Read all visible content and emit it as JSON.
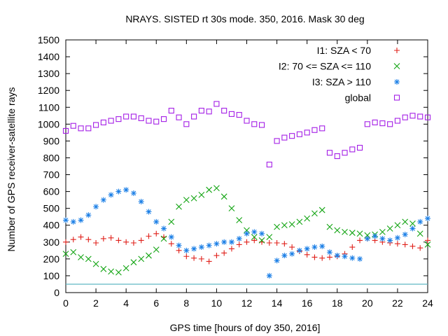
{
  "chart_data": {
    "type": "scatter",
    "title": "NRAYS. SISTED rt 30s mode. 350, 2016. Mask 30 deg",
    "xlabel": "GPS time [hours of doy 350, 2016]",
    "ylabel": "Number of GPS receiver-satellite rays",
    "xlim": [
      0,
      24
    ],
    "ylim": [
      0,
      1500
    ],
    "xticks": [
      0,
      2,
      4,
      6,
      8,
      10,
      12,
      14,
      16,
      18,
      20,
      22,
      24
    ],
    "yticks": [
      0,
      100,
      200,
      300,
      400,
      500,
      600,
      700,
      800,
      900,
      1000,
      1100,
      1200,
      1300,
      1400,
      1500
    ],
    "grid": false,
    "legend_position": "top-right",
    "reference_line": {
      "y": 50,
      "color": "#5fb8c4"
    },
    "series": [
      {
        "name": "I1: SZA < 70",
        "marker": "+",
        "color": "#e0201a",
        "x": [
          0,
          0.5,
          1,
          1.5,
          2,
          2.5,
          3,
          3.5,
          4,
          4.5,
          5,
          5.5,
          6,
          6.5,
          7,
          7.5,
          8,
          8.5,
          9,
          9.5,
          10,
          10.5,
          11,
          11.5,
          12,
          12.5,
          13,
          13.5,
          14,
          14.5,
          15,
          15.5,
          16,
          16.5,
          17,
          17.5,
          18,
          18.5,
          19,
          19.5,
          20,
          20.5,
          21,
          21.5,
          22,
          22.5,
          23,
          23.5,
          24
        ],
        "values": [
          300,
          315,
          330,
          315,
          295,
          320,
          325,
          310,
          300,
          295,
          310,
          335,
          350,
          330,
          290,
          250,
          215,
          205,
          200,
          185,
          220,
          235,
          260,
          285,
          300,
          310,
          300,
          295,
          295,
          290,
          270,
          245,
          225,
          210,
          205,
          210,
          215,
          230,
          270,
          310,
          320,
          310,
          300,
          295,
          290,
          285,
          275,
          265,
          310
        ]
      },
      {
        "name": "I2: 70 <= SZA <= 110",
        "marker": "x",
        "color": "#12a412",
        "x": [
          0,
          0.5,
          1,
          1.5,
          2,
          2.5,
          3,
          3.5,
          4,
          4.5,
          5,
          5.5,
          6,
          6.5,
          7,
          7.5,
          8,
          8.5,
          9,
          9.5,
          10,
          10.5,
          11,
          11.5,
          12,
          12.5,
          13,
          13.5,
          14,
          14.5,
          15,
          15.5,
          16,
          16.5,
          17,
          17.5,
          18,
          18.5,
          19,
          19.5,
          20,
          20.5,
          21,
          21.5,
          22,
          22.5,
          23,
          23.5,
          24
        ],
        "values": [
          230,
          240,
          210,
          200,
          170,
          140,
          125,
          120,
          145,
          180,
          200,
          220,
          255,
          320,
          420,
          510,
          550,
          560,
          580,
          610,
          620,
          570,
          500,
          430,
          370,
          330,
          310,
          330,
          390,
          400,
          405,
          420,
          440,
          470,
          490,
          390,
          370,
          360,
          355,
          350,
          340,
          345,
          360,
          380,
          400,
          420,
          410,
          350,
          285
        ]
      },
      {
        "name": "I3: SZA > 110",
        "marker": "*",
        "color": "#1b7fe6",
        "x": [
          0,
          0.5,
          1,
          1.5,
          2,
          2.5,
          3,
          3.5,
          4,
          4.5,
          5,
          5.5,
          6,
          6.5,
          7,
          7.5,
          8,
          8.5,
          9,
          9.5,
          10,
          10.5,
          11,
          11.5,
          12,
          12.5,
          13,
          13.5,
          14,
          14.5,
          15,
          15.5,
          16,
          16.5,
          17,
          17.5,
          18,
          18.5,
          19,
          19.5,
          20,
          20.5,
          21,
          21.5,
          22,
          22.5,
          23,
          23.5,
          24
        ],
        "values": [
          430,
          420,
          430,
          460,
          510,
          550,
          580,
          600,
          610,
          590,
          540,
          480,
          420,
          380,
          330,
          280,
          250,
          260,
          270,
          280,
          290,
          300,
          300,
          320,
          350,
          360,
          350,
          100,
          190,
          220,
          230,
          250,
          260,
          270,
          275,
          240,
          220,
          215,
          205,
          200,
          320,
          335,
          320,
          310,
          325,
          345,
          380,
          420,
          440
        ]
      },
      {
        "name": "global",
        "marker": "square",
        "color": "#a41ee6",
        "x": [
          0,
          0.5,
          1,
          1.5,
          2,
          2.5,
          3,
          3.5,
          4,
          4.5,
          5,
          5.5,
          6,
          6.5,
          7,
          7.5,
          8,
          8.5,
          9,
          9.5,
          10,
          10.5,
          11,
          11.5,
          12,
          12.5,
          13,
          13.5,
          14,
          14.5,
          15,
          15.5,
          16,
          16.5,
          17,
          17.5,
          18,
          18.5,
          19,
          19.5,
          20,
          20.5,
          21,
          21.5,
          22,
          22.5,
          23,
          23.5,
          24
        ],
        "values": [
          960,
          990,
          975,
          975,
          995,
          1010,
          1020,
          1030,
          1045,
          1045,
          1035,
          1020,
          1015,
          1030,
          1080,
          1040,
          1000,
          1045,
          1080,
          1075,
          1120,
          1080,
          1060,
          1055,
          1020,
          1000,
          995,
          760,
          900,
          920,
          930,
          940,
          950,
          965,
          975,
          830,
          810,
          830,
          850,
          860,
          1000,
          1010,
          1005,
          1000,
          1020,
          1040,
          1050,
          1045,
          1040
        ]
      }
    ]
  }
}
